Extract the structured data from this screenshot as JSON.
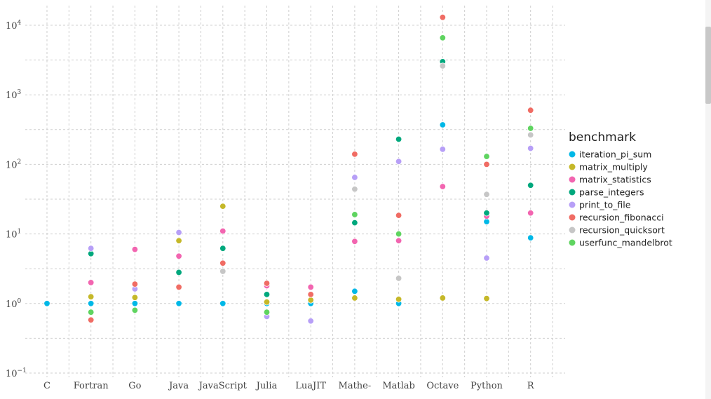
{
  "chart_data": {
    "type": "scatter",
    "title": "",
    "xlabel": "",
    "ylabel": "",
    "y_scale": "log10",
    "ylim": [
      0.1,
      10000
    ],
    "y_ticks": [
      {
        "value": 0.1,
        "base": "10",
        "exp": "−1"
      },
      {
        "value": 1,
        "base": "10",
        "exp": "0"
      },
      {
        "value": 10,
        "base": "10",
        "exp": "1"
      },
      {
        "value": 100,
        "base": "10",
        "exp": "2"
      },
      {
        "value": 1000,
        "base": "10",
        "exp": "3"
      },
      {
        "value": 10000,
        "base": "10",
        "exp": "4"
      }
    ],
    "grid": true,
    "legend_placement": "right",
    "legend_title": "benchmark",
    "categories": [
      "C",
      "Fortran",
      "Go",
      "Java",
      "JavaScript",
      "Julia",
      "LuaJIT",
      "Mathe-",
      "Matlab",
      "Octave",
      "Python",
      "R"
    ],
    "series": [
      {
        "name": "iteration_pi_sum",
        "color": "#00b8e7",
        "values": [
          1,
          1,
          1,
          1,
          1,
          1,
          1,
          1.5,
          1,
          370,
          15,
          8.8
        ]
      },
      {
        "name": "matrix_multiply",
        "color": "#c5b829",
        "values": [
          null,
          1.25,
          1.22,
          8,
          25,
          1.05,
          1.12,
          1.2,
          1.15,
          1.2,
          1.18,
          null
        ]
      },
      {
        "name": "matrix_statistics",
        "color": "#f265b0",
        "values": [
          null,
          2,
          6,
          4.8,
          11,
          1.8,
          1.72,
          7.8,
          8,
          48,
          18,
          20
        ]
      },
      {
        "name": "parse_integers",
        "color": "#00a87d",
        "values": [
          null,
          5.2,
          null,
          2.8,
          6.2,
          1.35,
          null,
          14.5,
          230,
          3000,
          20,
          50
        ]
      },
      {
        "name": "print_to_file",
        "color": "#b79ff7",
        "values": [
          null,
          6.2,
          1.62,
          10.5,
          null,
          0.65,
          0.56,
          65,
          110,
          165,
          4.5,
          170
        ]
      },
      {
        "name": "recursion_fibonacci",
        "color": "#f06c64",
        "values": [
          null,
          0.58,
          1.9,
          1.72,
          3.8,
          1.95,
          1.35,
          140,
          18.5,
          13000,
          100,
          600
        ]
      },
      {
        "name": "recursion_quicksort",
        "color": "#c6c6c6",
        "values": [
          null,
          null,
          null,
          null,
          2.9,
          null,
          null,
          44,
          2.3,
          2600,
          37,
          265
        ]
      },
      {
        "name": "userfunc_mandelbrot",
        "color": "#5fd460",
        "values": [
          null,
          0.75,
          0.8,
          null,
          null,
          0.75,
          null,
          19,
          10,
          6600,
          130,
          330
        ]
      }
    ]
  }
}
